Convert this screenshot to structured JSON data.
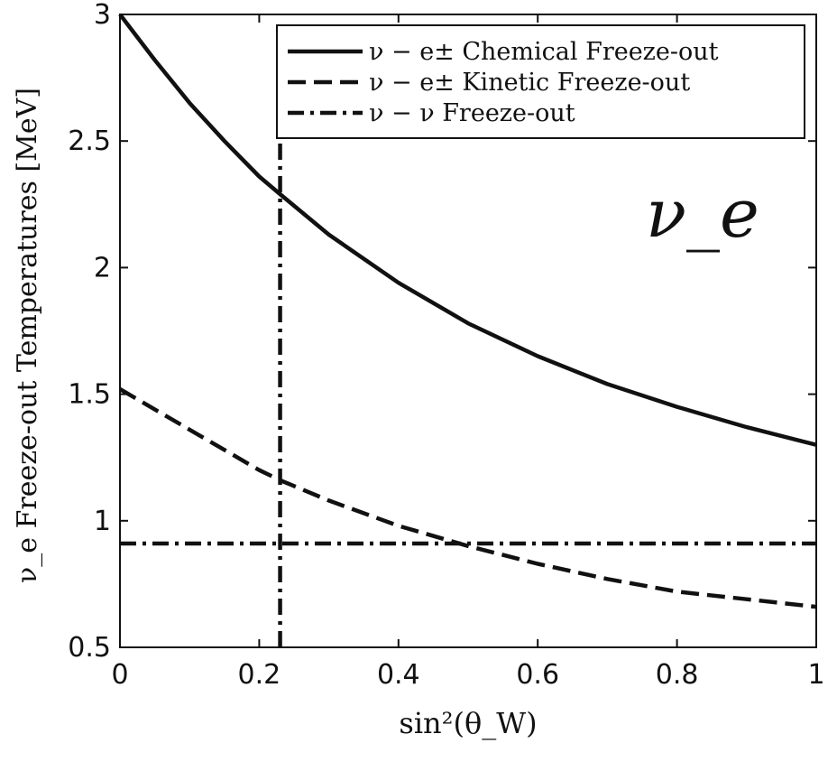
{
  "chart_data": {
    "type": "line",
    "xlabel": "sin²(θ_W)",
    "ylabel": "ν_e Freeze-out Temperatures [MeV]",
    "annotation": "ν_e",
    "xlim": [
      0,
      1
    ],
    "ylim": [
      0.5,
      3
    ],
    "x_ticks": [
      "0",
      "0.2",
      "0.4",
      "0.6",
      "0.8",
      "1"
    ],
    "y_ticks": [
      "0.5",
      "1",
      "1.5",
      "2",
      "2.5",
      "3"
    ],
    "grid": false,
    "legend_position": "top-right",
    "series": [
      {
        "name": "ν − e± Chemical Freeze-out",
        "style": "solid",
        "x": [
          0,
          0.05,
          0.1,
          0.15,
          0.2,
          0.23,
          0.3,
          0.4,
          0.5,
          0.6,
          0.7,
          0.8,
          0.9,
          1.0
        ],
        "y": [
          3.0,
          2.82,
          2.65,
          2.5,
          2.36,
          2.29,
          2.13,
          1.94,
          1.78,
          1.65,
          1.54,
          1.45,
          1.37,
          1.3
        ]
      },
      {
        "name": "ν − e± Kinetic Freeze-out",
        "style": "dashed",
        "x": [
          0,
          0.1,
          0.2,
          0.23,
          0.3,
          0.4,
          0.5,
          0.6,
          0.7,
          0.8,
          0.9,
          1.0
        ],
        "y": [
          1.52,
          1.36,
          1.2,
          1.16,
          1.08,
          0.98,
          0.9,
          0.83,
          0.77,
          0.72,
          0.69,
          0.66
        ]
      },
      {
        "name": "ν − ν Freeze-out",
        "style": "dash-dot",
        "x": [
          0,
          1
        ],
        "y": [
          0.91,
          0.91
        ]
      }
    ],
    "reference_lines": [
      {
        "orientation": "vertical",
        "x": 0.23,
        "y_range": [
          0.5,
          2.55
        ],
        "style": "dash-dot"
      }
    ]
  }
}
